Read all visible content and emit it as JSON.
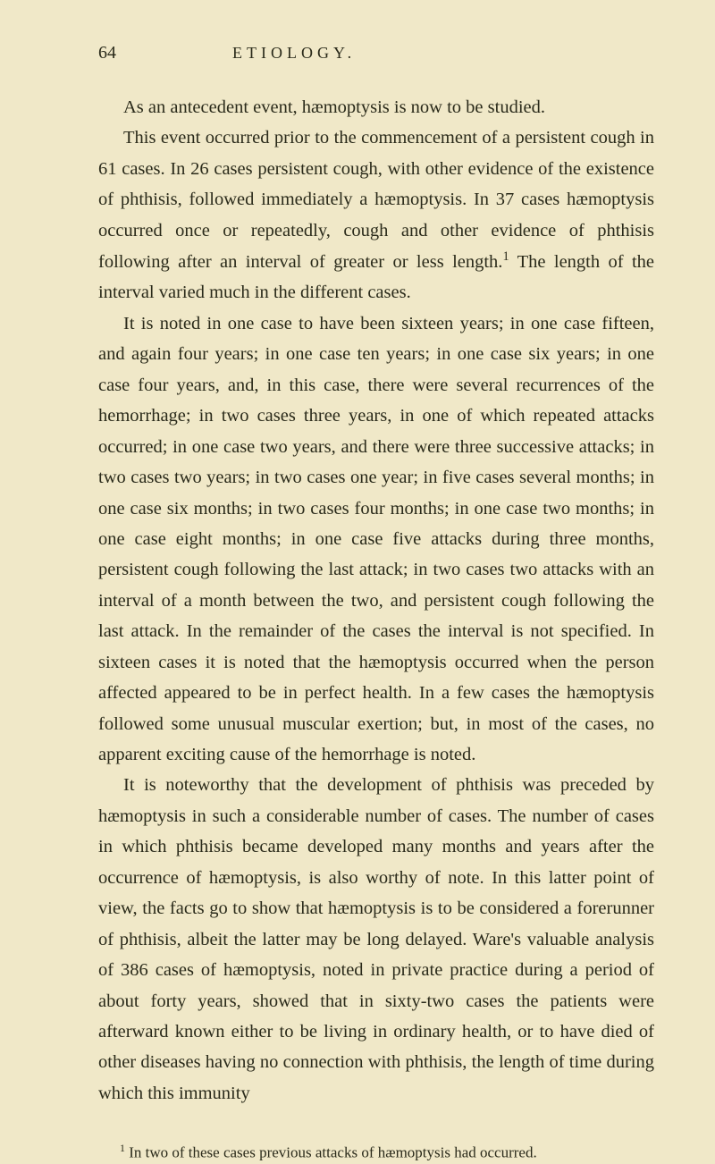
{
  "page_number": "64",
  "header_title": "ETIOLOGY.",
  "paragraphs": {
    "p1": "As an antecedent event, hæmoptysis is now to be studied.",
    "p2_a": "This event occurred prior to the commencement of a persistent cough in 61 cases. In 26 cases persistent cough, with other evidence of the existence of phthisis, followed immediately a hæmoptysis. In 37 cases hæmoptysis occurred once or repeatedly, cough and other evidence of phthisis following after an interval of greater or less length.",
    "p2_sup": "1",
    "p2_b": " The length of the interval varied much in the different cases.",
    "p3": "It is noted in one case to have been sixteen years; in one case fifteen, and again four years; in one case ten years; in one case six years; in one case four years, and, in this case, there were several recurrences of the hemorrhage; in two cases three years, in one of which repeated attacks occurred; in one case two years, and there were three successive attacks; in two cases two years; in two cases one year; in five cases several months; in one case six months; in two cases four months; in one case two months; in one case eight months; in one case five attacks during three months, persistent cough following the last attack; in two cases two attacks with an interval of a month between the two, and persistent cough following the last attack. In the remainder of the cases the interval is not specified. In sixteen cases it is noted that the hæmoptysis occurred when the person affected appeared to be in perfect health. In a few cases the hæmoptysis followed some unusual muscular exertion; but, in most of the cases, no apparent exciting cause of the hemorrhage is noted.",
    "p4": "It is noteworthy that the development of phthisis was preceded by hæmoptysis in such a considerable number of cases. The number of cases in which phthisis became developed many months and years after the occurrence of hæmoptysis, is also worthy of note. In this latter point of view, the facts go to show that hæmoptysis is to be considered a forerunner of phthisis, albeit the latter may be long delayed. Ware's valuable analysis of 386 cases of hæmoptysis, noted in private practice during a period of about forty years, showed that in sixty-two cases the patients were afterward known either to be living in ordinary health, or to have died of other diseases having no connection with phthisis, the length of time during which this immunity"
  },
  "footnote": {
    "marker": "1",
    "text": " In two of these cases previous attacks of hæmoptysis had occurred."
  },
  "colors": {
    "background": "#f0e8c8",
    "text": "#2a2a1a"
  }
}
